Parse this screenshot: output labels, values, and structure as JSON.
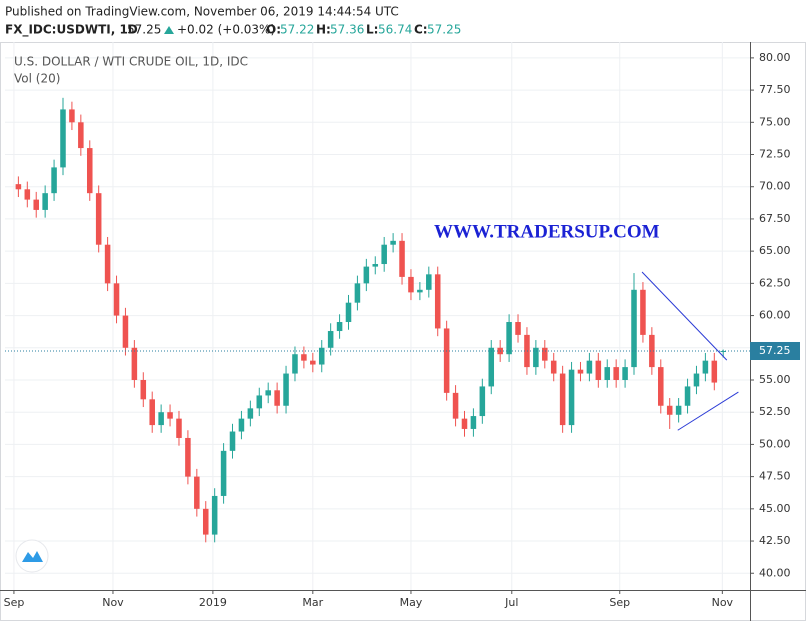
{
  "header": {
    "published": "Published on TradingView.com, November 06, 2019 14:44:54 UTC",
    "symbol": "FX_IDC:USDWTI, 1D",
    "change": "+0.02 (+0.03%)",
    "o_label": "O:",
    "h_label": "H:",
    "l_label": "L:",
    "c_label": "C:"
  },
  "chart_data": {
    "type": "candlestick",
    "title": "U.S. DOLLAR / WTI CRUDE OIL, 1D, IDC",
    "indicator": "Vol (20)",
    "watermark": "WWW.TRADERSUP.COM",
    "up_color": "#26a69a",
    "down_color": "#ef5350",
    "ylim": [
      38.7,
      81.0
    ],
    "yticks": [
      {
        "value": 40,
        "label": "40.00"
      },
      {
        "value": 42.5,
        "label": "42.50"
      },
      {
        "value": 45,
        "label": "45.00"
      },
      {
        "value": 47.5,
        "label": "47.50"
      },
      {
        "value": 50,
        "label": "50.00"
      },
      {
        "value": 52.5,
        "label": "52.50"
      },
      {
        "value": 55,
        "label": "55.00"
      },
      {
        "value": 57.5,
        "label": "57.50"
      },
      {
        "value": 60,
        "label": "60.00"
      },
      {
        "value": 62.5,
        "label": "62.50"
      },
      {
        "value": 65,
        "label": "65.00"
      },
      {
        "value": 67.5,
        "label": "67.50"
      },
      {
        "value": 70,
        "label": "70.00"
      },
      {
        "value": 72.5,
        "label": "72.50"
      },
      {
        "value": 75,
        "label": "75.00"
      },
      {
        "value": 77.5,
        "label": "77.50"
      },
      {
        "value": 80,
        "label": "80.00"
      }
    ],
    "xlim": [
      -1.5,
      82
    ],
    "xticks": [
      {
        "value": -0.5,
        "label": "Sep"
      },
      {
        "value": 10.6,
        "label": "Nov"
      },
      {
        "value": 21.8,
        "label": "2019"
      },
      {
        "value": 33.0,
        "label": "Mar"
      },
      {
        "value": 44.0,
        "label": "May"
      },
      {
        "value": 55.3,
        "label": "Jul"
      },
      {
        "value": 67.4,
        "label": "Sep"
      },
      {
        "value": 78.9,
        "label": "Nov"
      }
    ],
    "grid": true,
    "candles": [
      [
        70.2,
        70.8,
        69.2,
        69.8
      ],
      [
        69.8,
        70.4,
        68.4,
        69.0
      ],
      [
        69.0,
        69.6,
        67.6,
        68.2
      ],
      [
        68.2,
        70.1,
        67.6,
        69.5
      ],
      [
        69.5,
        72.1,
        68.9,
        71.5
      ],
      [
        71.5,
        76.9,
        70.9,
        76.0
      ],
      [
        76.0,
        76.6,
        74.4,
        75.0
      ],
      [
        75.0,
        75.6,
        72.4,
        73.0
      ],
      [
        73.0,
        73.6,
        68.9,
        69.5
      ],
      [
        69.5,
        70.1,
        64.9,
        65.5
      ],
      [
        65.5,
        66.1,
        61.9,
        62.5
      ],
      [
        62.5,
        63.1,
        59.4,
        60.0
      ],
      [
        60.0,
        60.6,
        56.9,
        57.5
      ],
      [
        57.5,
        58.1,
        54.4,
        55.0
      ],
      [
        55.0,
        55.6,
        52.9,
        53.5
      ],
      [
        53.5,
        54.1,
        50.9,
        51.5
      ],
      [
        51.5,
        53.1,
        50.9,
        52.5
      ],
      [
        52.5,
        53.1,
        51.4,
        52.0
      ],
      [
        52.0,
        52.6,
        49.9,
        50.5
      ],
      [
        50.5,
        51.1,
        46.9,
        47.5
      ],
      [
        47.5,
        48.1,
        44.4,
        45.0
      ],
      [
        45.0,
        45.6,
        42.4,
        43.0
      ],
      [
        43.0,
        46.6,
        42.4,
        46.0
      ],
      [
        46.0,
        50.1,
        45.4,
        49.5
      ],
      [
        49.5,
        51.6,
        48.9,
        51.0
      ],
      [
        51.0,
        52.6,
        50.4,
        52.0
      ],
      [
        52.0,
        53.4,
        51.4,
        52.8
      ],
      [
        52.8,
        54.4,
        52.2,
        53.8
      ],
      [
        53.8,
        54.8,
        53.2,
        54.2
      ],
      [
        54.2,
        54.8,
        52.4,
        53.0
      ],
      [
        53.0,
        56.1,
        52.4,
        55.5
      ],
      [
        55.5,
        57.6,
        54.9,
        57.0
      ],
      [
        57.0,
        57.6,
        55.9,
        56.5
      ],
      [
        56.5,
        57.1,
        55.6,
        56.2
      ],
      [
        56.2,
        58.1,
        55.6,
        57.5
      ],
      [
        57.5,
        59.4,
        56.9,
        58.8
      ],
      [
        58.8,
        60.1,
        58.2,
        59.5
      ],
      [
        59.5,
        61.6,
        58.9,
        61.0
      ],
      [
        61.0,
        63.1,
        60.4,
        62.5
      ],
      [
        62.5,
        64.4,
        61.9,
        63.8
      ],
      [
        63.8,
        64.6,
        63.2,
        64.0
      ],
      [
        64.0,
        66.1,
        63.4,
        65.5
      ],
      [
        65.5,
        66.4,
        64.9,
        65.8
      ],
      [
        65.8,
        66.4,
        62.4,
        63.0
      ],
      [
        63.0,
        63.6,
        61.2,
        61.8
      ],
      [
        61.8,
        62.6,
        61.2,
        62.0
      ],
      [
        62.0,
        63.8,
        61.4,
        63.2
      ],
      [
        63.2,
        63.8,
        58.4,
        59.0
      ],
      [
        59.0,
        59.6,
        53.4,
        54.0
      ],
      [
        54.0,
        54.6,
        51.4,
        52.0
      ],
      [
        52.0,
        52.6,
        50.6,
        51.2
      ],
      [
        51.2,
        52.8,
        50.6,
        52.2
      ],
      [
        52.2,
        55.1,
        51.6,
        54.5
      ],
      [
        54.5,
        58.1,
        53.9,
        57.5
      ],
      [
        57.5,
        58.1,
        56.4,
        57.0
      ],
      [
        57.0,
        60.1,
        56.4,
        59.5
      ],
      [
        59.5,
        60.1,
        57.9,
        58.5
      ],
      [
        58.5,
        59.1,
        55.4,
        56.0
      ],
      [
        56.0,
        58.1,
        55.4,
        57.5
      ],
      [
        57.5,
        58.1,
        55.9,
        56.5
      ],
      [
        56.5,
        57.1,
        54.9,
        55.5
      ],
      [
        55.5,
        56.1,
        50.9,
        51.5
      ],
      [
        51.5,
        56.4,
        50.9,
        55.8
      ],
      [
        55.8,
        56.4,
        54.9,
        55.5
      ],
      [
        55.5,
        57.1,
        54.9,
        56.5
      ],
      [
        56.5,
        57.1,
        54.4,
        55.0
      ],
      [
        55.0,
        56.6,
        54.4,
        56.0
      ],
      [
        56.0,
        56.6,
        54.4,
        55.0
      ],
      [
        55.0,
        56.6,
        54.4,
        56.0
      ],
      [
        56.0,
        63.3,
        55.4,
        62.0
      ],
      [
        62.0,
        62.6,
        57.9,
        58.5
      ],
      [
        58.5,
        59.1,
        55.4,
        56.0
      ],
      [
        56.0,
        56.6,
        52.4,
        53.0
      ],
      [
        53.0,
        53.6,
        51.2,
        52.3
      ],
      [
        52.3,
        53.6,
        51.7,
        53.0
      ],
      [
        53.0,
        55.1,
        52.4,
        54.5
      ],
      [
        54.5,
        56.1,
        53.9,
        55.5
      ],
      [
        55.5,
        57.1,
        54.9,
        56.5
      ],
      [
        56.5,
        57.1,
        54.2,
        54.8
      ],
      [
        57.22,
        57.36,
        56.74,
        57.25
      ]
    ],
    "trendlines": [
      {
        "x": [
          69.9,
          79.4
        ],
        "y": [
          63.38,
          56.54
        ],
        "color": "#2b3bd6"
      },
      {
        "x": [
          73.9,
          80.7
        ],
        "y": [
          51.1,
          54.06
        ],
        "color": "#2b3bd6"
      }
    ]
  }
}
